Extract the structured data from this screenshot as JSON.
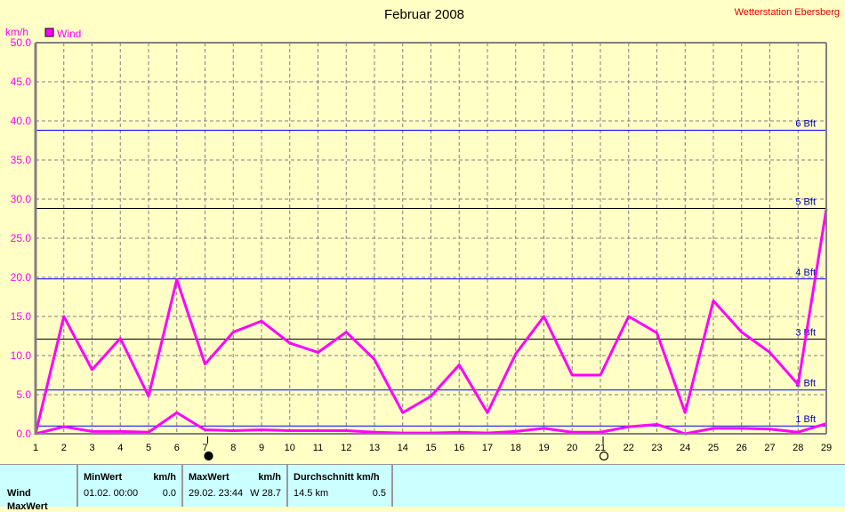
{
  "title": "Februar 2008",
  "station": "Wetterstation Ebersberg",
  "chart_data": {
    "type": "line",
    "title": "Februar 2008",
    "ylabel": "km/h",
    "ylim": [
      0,
      50
    ],
    "yticks": [
      "0.0",
      "5.0",
      "10.0",
      "15.0",
      "20.0",
      "25.0",
      "30.0",
      "35.0",
      "40.0",
      "45.0",
      "50.0"
    ],
    "x": [
      1,
      2,
      3,
      4,
      5,
      6,
      7,
      8,
      9,
      10,
      11,
      12,
      13,
      14,
      15,
      16,
      17,
      18,
      19,
      20,
      21,
      22,
      23,
      24,
      25,
      26,
      27,
      28,
      29
    ],
    "legend": [
      {
        "name": "Wind",
        "color": "#ff00ff"
      }
    ],
    "legend_position": "top-left",
    "grid": true,
    "series": [
      {
        "name": "Wind max",
        "color": "#ff00ff",
        "values": [
          0,
          15,
          8.2,
          12.2,
          4.8,
          19.7,
          8.9,
          13,
          14.4,
          11.6,
          10.4,
          13,
          9.5,
          2.7,
          4.8,
          8.8,
          2.7,
          10.2,
          15,
          7.5,
          7.5,
          15,
          12.9,
          2.7,
          17,
          13,
          10.4,
          6.3,
          28.7
        ]
      },
      {
        "name": "Wind avg",
        "color": "#ff00ff",
        "values": [
          0,
          0.9,
          0.3,
          0.3,
          0.2,
          2.7,
          0.5,
          0.4,
          0.5,
          0.4,
          0.4,
          0.4,
          0.2,
          0.1,
          0.1,
          0.2,
          0.1,
          0.3,
          0.7,
          0.2,
          0.2,
          0.9,
          1.2,
          0,
          0.7,
          0.7,
          0.6,
          0.2,
          1.3
        ]
      }
    ],
    "reference_lines": [
      {
        "label": "1 Bft",
        "value": 1,
        "color": "#0000ff"
      },
      {
        "label": "2 Bft",
        "value": 5.6,
        "color": "#0000ff"
      },
      {
        "label": "3 Bft",
        "value": 12.1,
        "color": "#000000"
      },
      {
        "label": "4 Bft",
        "value": 19.8,
        "color": "#0000ff"
      },
      {
        "label": "5 Bft",
        "value": 28.8,
        "color": "#000000"
      },
      {
        "label": "6 Bft",
        "value": 38.8,
        "color": "#0000ff"
      }
    ],
    "moon_phases": [
      {
        "day": 7,
        "phase": "new"
      },
      {
        "day": 21,
        "phase": "full"
      }
    ]
  },
  "panel": {
    "row_label": "Wind",
    "row2_label": "MaxWert",
    "min": {
      "header": "MinWert",
      "unit": "km/h",
      "date": "01.02.  00:00",
      "value": "0.0"
    },
    "max": {
      "header": "MaxWert",
      "unit": "km/h",
      "date": "29.02.  23:44",
      "value": "W 28.7"
    },
    "avg": {
      "header": "Durchschnitt km/h",
      "dist": "14.5 km",
      "value": "0.5"
    }
  }
}
